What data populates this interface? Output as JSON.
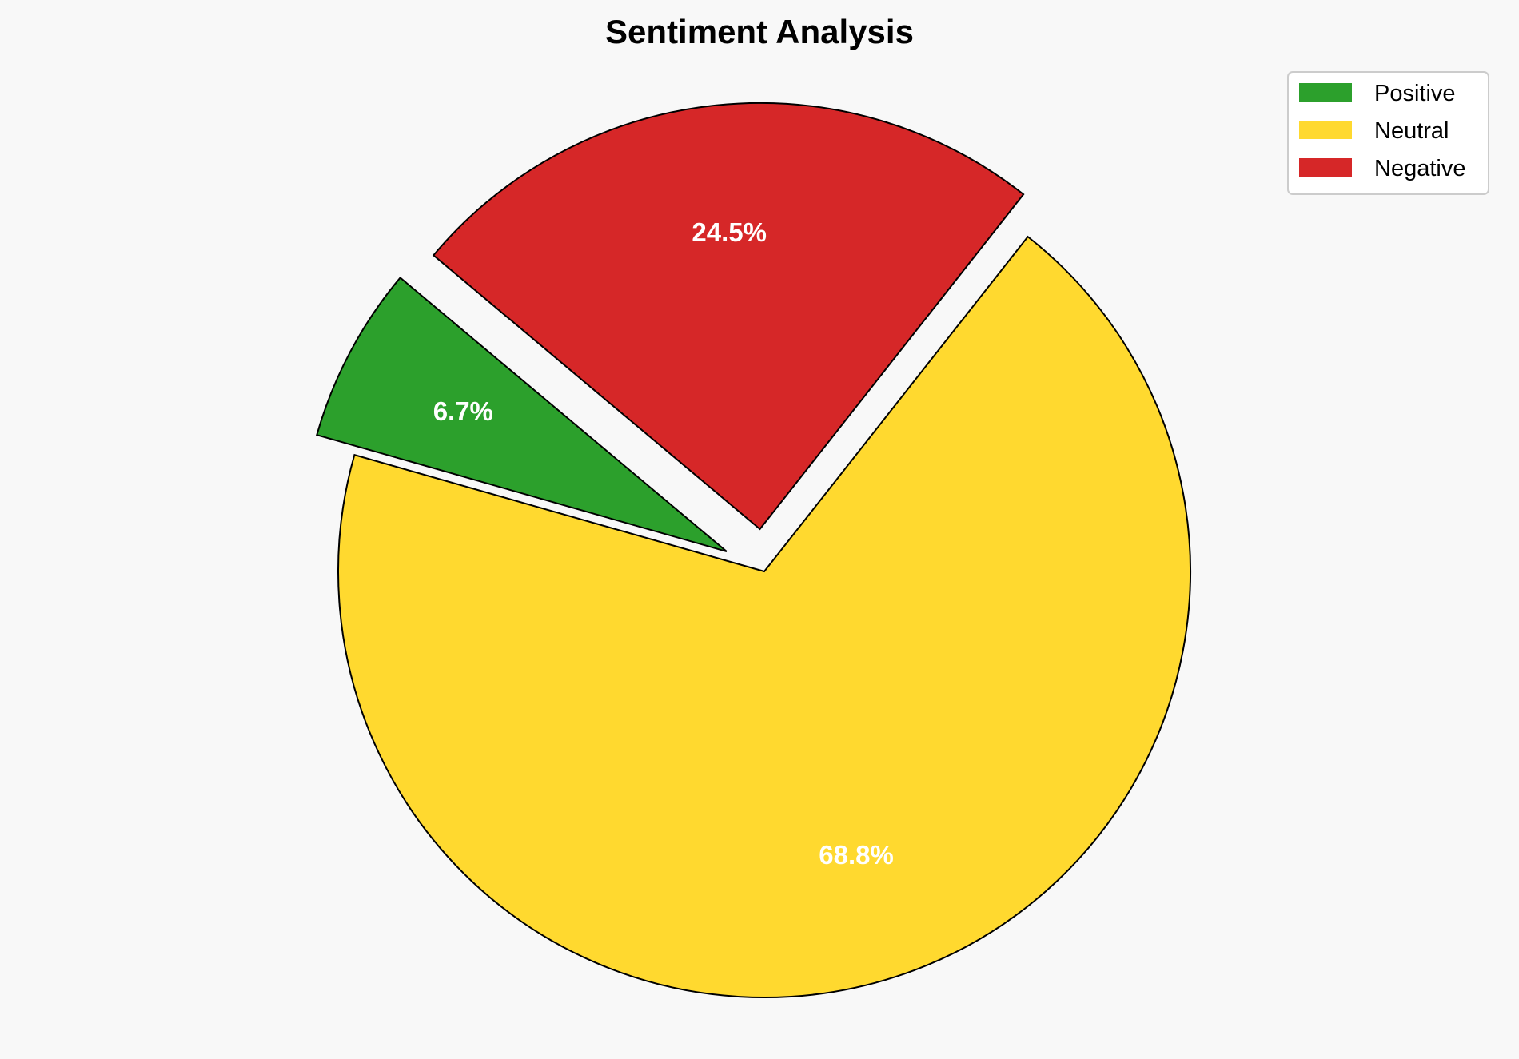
{
  "chart_data": {
    "type": "pie",
    "title": "Sentiment Analysis",
    "categories": [
      "Positive",
      "Neutral",
      "Negative"
    ],
    "values": [
      6.7,
      68.8,
      24.5
    ],
    "labels": [
      "6.7%",
      "68.8%",
      "24.5%"
    ],
    "colors": [
      "#2ca02c",
      "#ffd92f",
      "#d62728"
    ],
    "exploded": [
      true,
      false,
      true
    ],
    "start_angle_deg": 140,
    "direction": "counterclockwise",
    "legend": {
      "placement": "top-right",
      "entries": [
        "Positive",
        "Neutral",
        "Negative"
      ]
    }
  }
}
